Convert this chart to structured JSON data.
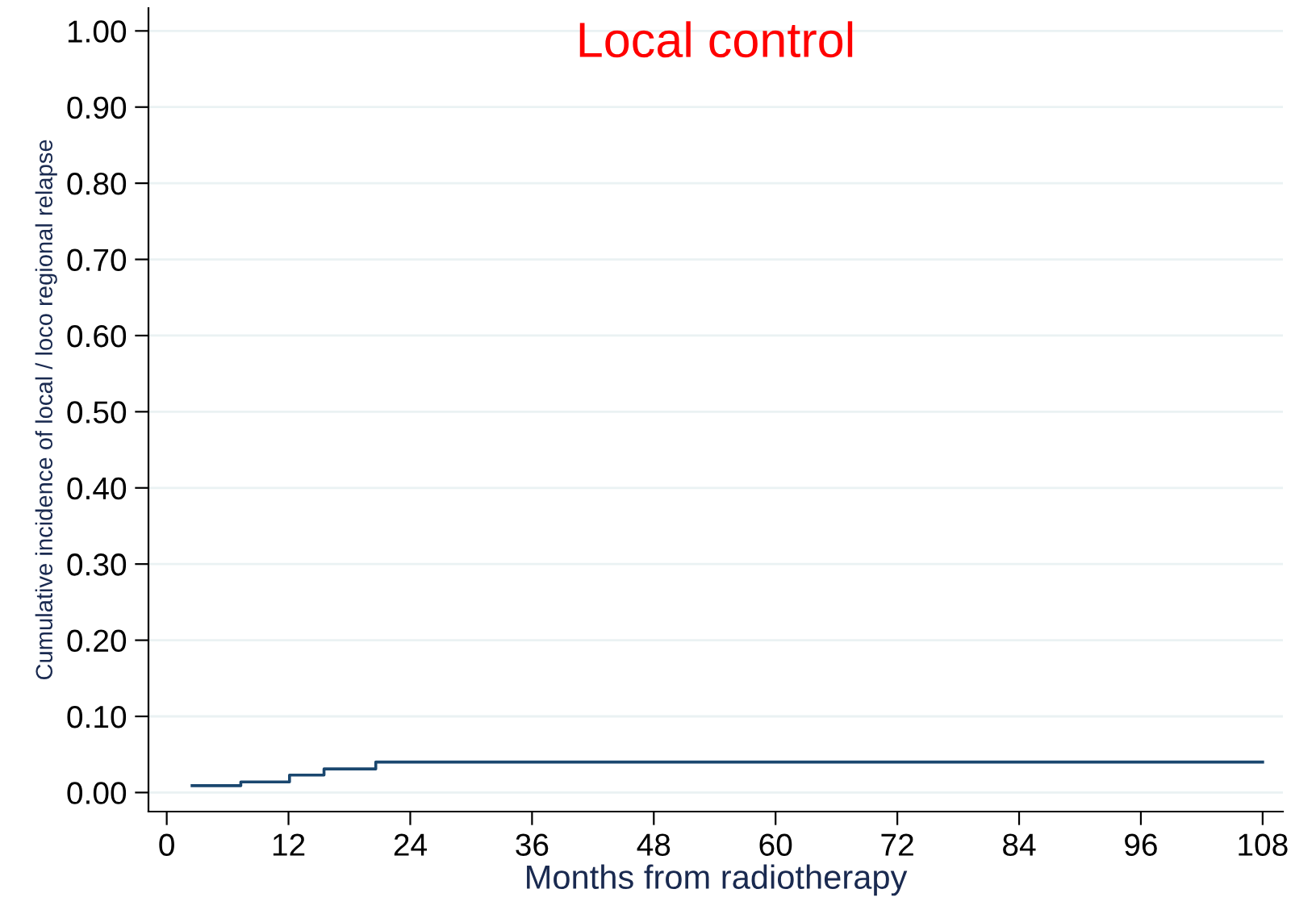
{
  "chart_data": {
    "type": "step",
    "title": "Local control",
    "xlabel": "Months from radiotherapy",
    "ylabel": "Cumulative incidence of local / loco regional relapse",
    "x": [
      2.5,
      7.3,
      12.1,
      15.5,
      20.6,
      108
    ],
    "series": [
      {
        "color": "#1a476f",
        "values": [
          0.009,
          0.014,
          0.023,
          0.031,
          0.04,
          0.04
        ]
      }
    ],
    "xlim": [
      -1.8,
      110
    ],
    "xticks": [
      0,
      12,
      24,
      36,
      48,
      60,
      72,
      84,
      96,
      108
    ],
    "ylim": [
      -0.025,
      1.03
    ],
    "yticks": [
      {
        "value": 0,
        "label": "0.00"
      },
      {
        "value": 0.1,
        "label": "0.10"
      },
      {
        "value": 0.2,
        "label": "0.20"
      },
      {
        "value": 0.3,
        "label": "0.30"
      },
      {
        "value": 0.4,
        "label": "0.40"
      },
      {
        "value": 0.5,
        "label": "0.50"
      },
      {
        "value": 0.6,
        "label": "0.60"
      },
      {
        "value": 0.7,
        "label": "0.70"
      },
      {
        "value": 0.8,
        "label": "0.80"
      },
      {
        "value": 0.9,
        "label": "0.90"
      },
      {
        "value": 1.0,
        "label": "1.00"
      }
    ],
    "grid": "y"
  }
}
